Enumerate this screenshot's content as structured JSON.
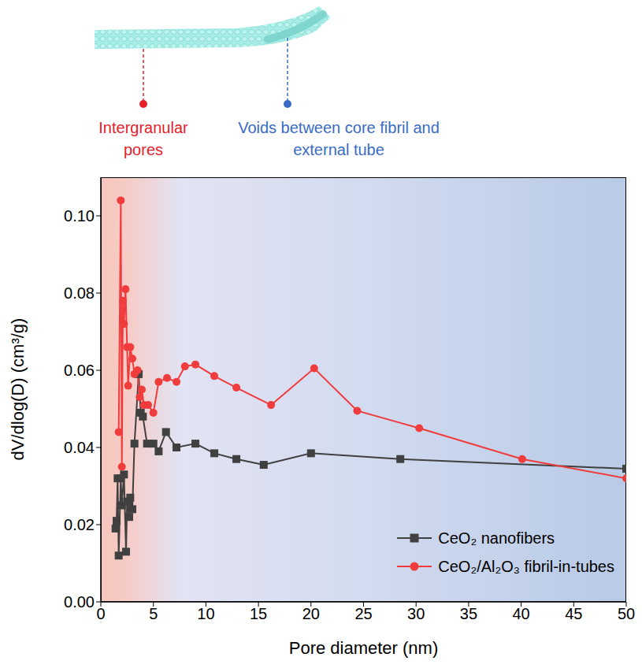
{
  "chart_data": {
    "type": "line",
    "annotations": [
      "Intergranular pores",
      "Voids between core fibril and external tube"
    ],
    "x_label": "Pore diameter (nm)",
    "y_label": "dV/dlog(D) (cm³/g)",
    "xlim": [
      0,
      50
    ],
    "xticks": [
      0,
      5,
      10,
      15,
      20,
      25,
      30,
      35,
      40,
      45,
      50
    ],
    "ylim": [
      0,
      0.11
    ],
    "yticks": [
      {
        "value": 0,
        "label": "0.00"
      },
      0.02,
      0.04,
      0.06,
      0.08,
      {
        "value": 0.1,
        "label": "0.10"
      }
    ],
    "grid": false,
    "legend": "lower right",
    "series": [
      {
        "name": "CeO₂ nanofibers",
        "color": "#404040",
        "marker": "square",
        "line_style": "solid",
        "x": [
          1.4,
          1.5,
          1.6,
          1.7,
          1.9,
          2.0,
          2.2,
          2.4,
          2.5,
          2.7,
          2.8,
          3.0,
          3.2,
          3.6,
          3.8,
          4.0,
          4.4,
          5.0,
          5.5,
          6.2,
          7.2,
          9.0,
          10.8,
          12.9,
          15.5,
          20.0,
          28.5,
          50
        ],
        "values": [
          0.019,
          0.021,
          0.032,
          0.012,
          0.032,
          0.025,
          0.033,
          0.013,
          0.026,
          0.022,
          0.027,
          0.024,
          0.041,
          0.059,
          0.049,
          0.048,
          0.041,
          0.041,
          0.039,
          0.044,
          0.04,
          0.041,
          0.0385,
          0.037,
          0.0355,
          0.0385,
          0.037,
          0.0345
        ]
      },
      {
        "name": "CeO₂/Al₂O₃ fibril-in-tubes",
        "color": "#f03c3c",
        "marker": "circle",
        "line_style": "solid",
        "x": [
          1.7,
          1.9,
          2.0,
          2.1,
          2.2,
          2.35,
          2.5,
          2.6,
          2.8,
          3.0,
          3.2,
          3.5,
          3.7,
          3.9,
          4.1,
          4.5,
          5.0,
          5.5,
          6.3,
          7.2,
          8.0,
          9.0,
          10.8,
          12.9,
          16.2,
          20.3,
          24.4,
          30.3,
          40.1,
          50
        ],
        "values": [
          0.044,
          0.104,
          0.035,
          0.078,
          0.072,
          0.081,
          0.066,
          0.056,
          0.066,
          0.063,
          0.059,
          0.06,
          0.053,
          0.055,
          0.051,
          0.051,
          0.049,
          0.057,
          0.058,
          0.057,
          0.061,
          0.0615,
          0.0585,
          0.0555,
          0.051,
          0.0605,
          0.0495,
          0.045,
          0.037,
          0.032
        ]
      }
    ]
  }
}
